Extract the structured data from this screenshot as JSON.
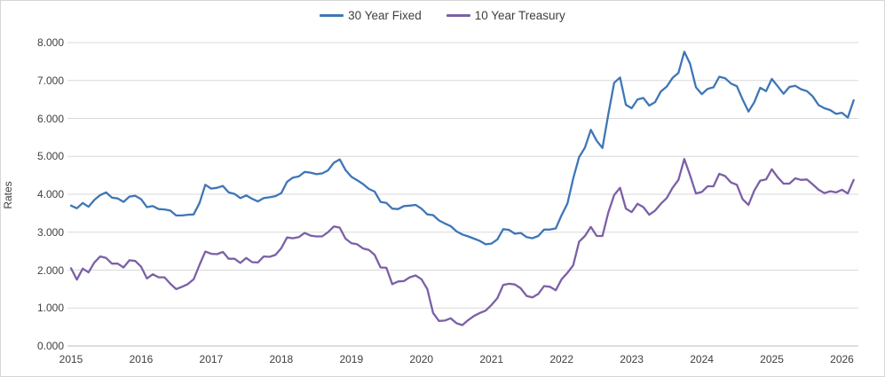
{
  "chart_data": {
    "type": "line",
    "title": "",
    "xlabel": "",
    "ylabel": "Rates",
    "ylim": [
      0,
      8
    ],
    "y_tick_labels": [
      "0.000",
      "1.000",
      "2.000",
      "3.000",
      "4.000",
      "5.000",
      "6.000",
      "7.000",
      "8.000"
    ],
    "x_tick_labels": [
      "2015",
      "2016",
      "2017",
      "2018",
      "2019",
      "2020",
      "2021",
      "2022",
      "2023",
      "2024",
      "2025",
      "2026"
    ],
    "x_unit": "month",
    "x_start": "2015-01",
    "x_end": "2026-03",
    "grid": true,
    "gridline_color": "#d9d9d9",
    "legend_position": "top-center",
    "series": [
      {
        "name": "30 Year Fixed",
        "color": "#3f76b6",
        "values": [
          3.7,
          3.63,
          3.77,
          3.67,
          3.85,
          3.98,
          4.05,
          3.91,
          3.89,
          3.8,
          3.94,
          3.96,
          3.87,
          3.66,
          3.69,
          3.61,
          3.6,
          3.57,
          3.44,
          3.44,
          3.46,
          3.47,
          3.77,
          4.25,
          4.15,
          4.17,
          4.22,
          4.05,
          4.01,
          3.9,
          3.97,
          3.88,
          3.81,
          3.9,
          3.92,
          3.95,
          4.03,
          4.33,
          4.44,
          4.47,
          4.59,
          4.57,
          4.53,
          4.55,
          4.63,
          4.83,
          4.92,
          4.64,
          4.46,
          4.37,
          4.27,
          4.14,
          4.07,
          3.8,
          3.77,
          3.62,
          3.61,
          3.69,
          3.7,
          3.72,
          3.62,
          3.47,
          3.45,
          3.31,
          3.23,
          3.16,
          3.02,
          2.94,
          2.89,
          2.83,
          2.77,
          2.68,
          2.7,
          2.81,
          3.08,
          3.06,
          2.96,
          2.98,
          2.87,
          2.84,
          2.9,
          3.07,
          3.07,
          3.1,
          3.45,
          3.76,
          4.42,
          4.98,
          5.23,
          5.7,
          5.41,
          5.22,
          6.11,
          6.94,
          7.08,
          6.36,
          6.27,
          6.5,
          6.54,
          6.34,
          6.43,
          6.71,
          6.84,
          7.07,
          7.2,
          7.76,
          7.44,
          6.82,
          6.64,
          6.78,
          6.82,
          7.1,
          7.06,
          6.92,
          6.85,
          6.5,
          6.18,
          6.43,
          6.81,
          6.72,
          7.04,
          6.85,
          6.65,
          6.83,
          6.86,
          6.77,
          6.72,
          6.58,
          6.35,
          6.27,
          6.22,
          6.12,
          6.15,
          6.02,
          6.48
        ]
      },
      {
        "name": "10 Year Treasury",
        "color": "#7c60a6",
        "values": [
          2.05,
          1.75,
          2.04,
          1.94,
          2.2,
          2.36,
          2.32,
          2.17,
          2.17,
          2.07,
          2.26,
          2.24,
          2.09,
          1.78,
          1.89,
          1.81,
          1.81,
          1.64,
          1.5,
          1.56,
          1.63,
          1.76,
          2.14,
          2.49,
          2.43,
          2.42,
          2.48,
          2.3,
          2.3,
          2.19,
          2.32,
          2.21,
          2.2,
          2.36,
          2.35,
          2.4,
          2.58,
          2.86,
          2.84,
          2.87,
          2.98,
          2.91,
          2.89,
          2.89,
          3.0,
          3.15,
          3.12,
          2.83,
          2.71,
          2.68,
          2.57,
          2.53,
          2.4,
          2.07,
          2.06,
          1.63,
          1.7,
          1.71,
          1.81,
          1.86,
          1.76,
          1.5,
          0.87,
          0.66,
          0.67,
          0.73,
          0.6,
          0.55,
          0.68,
          0.79,
          0.87,
          0.93,
          1.08,
          1.26,
          1.61,
          1.64,
          1.62,
          1.52,
          1.32,
          1.28,
          1.37,
          1.58,
          1.56,
          1.47,
          1.76,
          1.93,
          2.13,
          2.75,
          2.9,
          3.14,
          2.9,
          2.9,
          3.52,
          3.98,
          4.17,
          3.62,
          3.53,
          3.75,
          3.66,
          3.46,
          3.57,
          3.75,
          3.9,
          4.17,
          4.38,
          4.93,
          4.5,
          4.02,
          4.06,
          4.21,
          4.21,
          4.54,
          4.48,
          4.31,
          4.25,
          3.87,
          3.72,
          4.1,
          4.36,
          4.39,
          4.66,
          4.45,
          4.28,
          4.28,
          4.42,
          4.38,
          4.39,
          4.26,
          4.12,
          4.03,
          4.08,
          4.05,
          4.12,
          4.02,
          4.38
        ]
      }
    ]
  }
}
